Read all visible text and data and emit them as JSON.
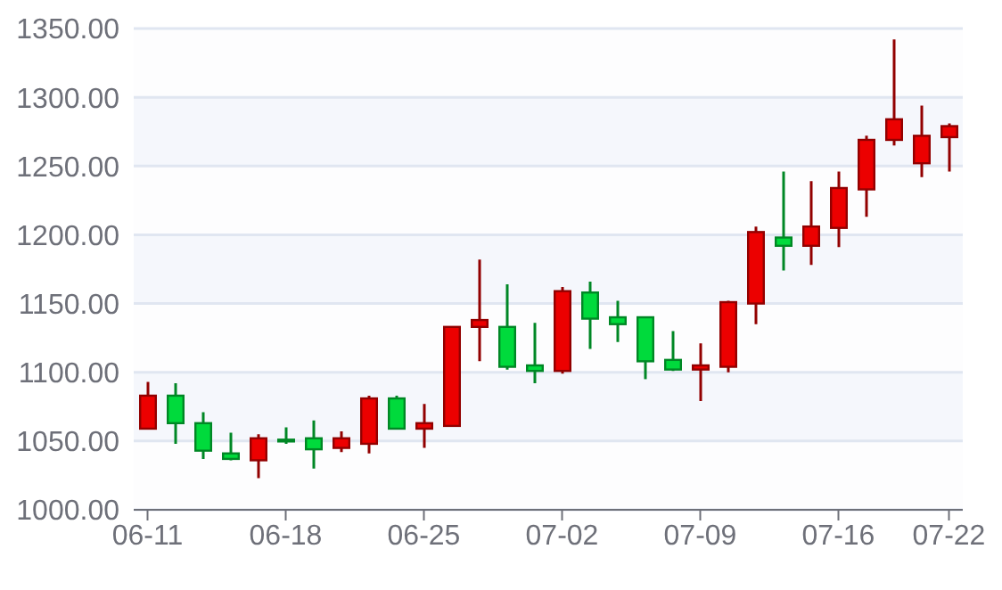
{
  "chart_data": {
    "type": "candlestick",
    "categories": [
      "06-11",
      null,
      null,
      null,
      null,
      "06-18",
      null,
      null,
      null,
      null,
      "06-25",
      null,
      null,
      null,
      null,
      "07-02",
      null,
      null,
      null,
      null,
      "07-09",
      null,
      null,
      null,
      null,
      "07-16",
      null,
      null,
      null,
      "07-22"
    ],
    "ohlc": [
      [
        1059,
        1093,
        1059,
        1083
      ],
      [
        1083,
        1092,
        1048,
        1063
      ],
      [
        1063,
        1071,
        1037,
        1043
      ],
      [
        1041,
        1056,
        1036,
        1037
      ],
      [
        1036,
        1055,
        1023,
        1052
      ],
      [
        1051,
        1060,
        1048,
        1050
      ],
      [
        1052,
        1065,
        1030,
        1044
      ],
      [
        1045,
        1057,
        1042,
        1052
      ],
      [
        1048,
        1083,
        1041,
        1081
      ],
      [
        1081,
        1083,
        1059,
        1059
      ],
      [
        1059,
        1077,
        1045,
        1063
      ],
      [
        1061,
        1133,
        1061,
        1133
      ],
      [
        1133,
        1182,
        1108,
        1138
      ],
      [
        1133,
        1164,
        1102,
        1104
      ],
      [
        1105,
        1136,
        1092,
        1101
      ],
      [
        1101,
        1162,
        1099,
        1159
      ],
      [
        1158,
        1166,
        1117,
        1139
      ],
      [
        1140,
        1152,
        1122,
        1135
      ],
      [
        1140,
        1140,
        1095,
        1108
      ],
      [
        1109,
        1130,
        1101,
        1102
      ],
      [
        1102,
        1121,
        1079,
        1105
      ],
      [
        1104,
        1152,
        1100,
        1151
      ],
      [
        1150,
        1206,
        1135,
        1202
      ],
      [
        1198,
        1246,
        1174,
        1192
      ],
      [
        1192,
        1239,
        1178,
        1206
      ],
      [
        1205,
        1246,
        1191,
        1234
      ],
      [
        1233,
        1272,
        1213,
        1269
      ],
      [
        1269,
        1342,
        1265,
        1284
      ],
      [
        1252,
        1294,
        1242,
        1272
      ],
      [
        1271,
        1281,
        1246,
        1279
      ]
    ],
    "colors": [
      "#ec0000",
      "#00da3c",
      "#00da3c",
      "#00da3c",
      "#ec0000",
      "#00da3c",
      "#00da3c",
      "#ec0000",
      "#ec0000",
      "#00da3c",
      "#ec0000",
      "#ec0000",
      "#ec0000",
      "#00da3c",
      "#00da3c",
      "#ec0000",
      "#00da3c",
      "#00da3c",
      "#00da3c",
      "#00da3c",
      "#ec0000",
      "#ec0000",
      "#ec0000",
      "#00da3c",
      "#ec0000",
      "#ec0000",
      "#ec0000",
      "#ec0000",
      "#ec0000",
      "#ec0000"
    ],
    "ylim": [
      1000,
      1350
    ],
    "yticks": [
      {
        "value": 1000,
        "label": "1000.00"
      },
      {
        "value": 1050,
        "label": "1050.00"
      },
      {
        "value": 1100,
        "label": "1100.00"
      },
      {
        "value": 1150,
        "label": "1150.00"
      },
      {
        "value": 1200,
        "label": "1200.00"
      },
      {
        "value": 1250,
        "label": "1250.00"
      },
      {
        "value": 1300,
        "label": "1300.00"
      },
      {
        "value": 1350,
        "label": "1350.00"
      }
    ],
    "grid": "y"
  }
}
